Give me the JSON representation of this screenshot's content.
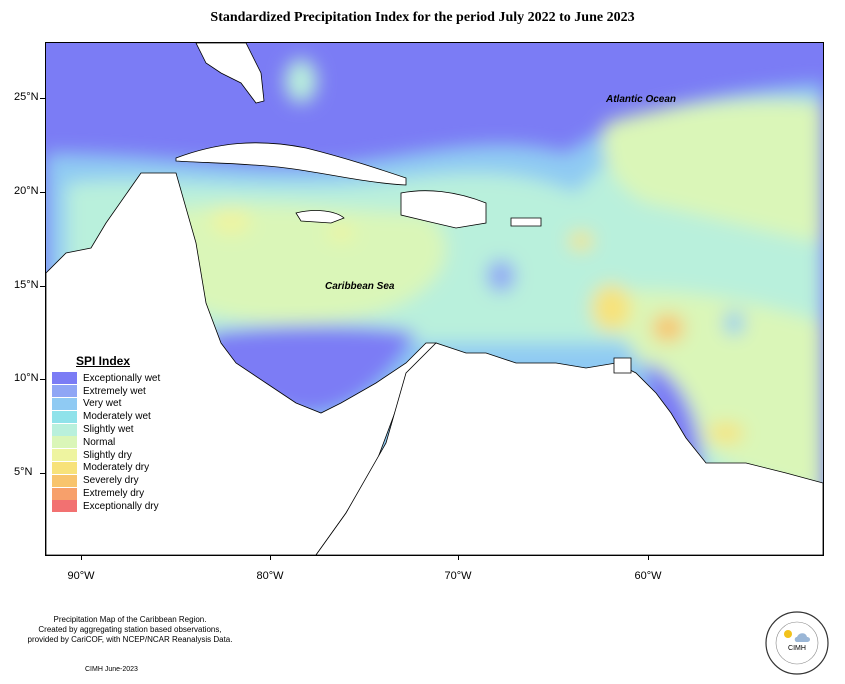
{
  "title": "Standardized Precipitation Index for the period July 2022 to June 2023",
  "ocean_labels": {
    "atlantic": "Atlantic Ocean",
    "caribbean": "Caribbean Sea"
  },
  "axes": {
    "lat_labels": [
      "25°N",
      "20°N",
      "15°N",
      "10°N",
      "5°N"
    ],
    "lon_labels": [
      "90°W",
      "80°W",
      "70°W",
      "60°W"
    ]
  },
  "legend": {
    "title": "SPI Index",
    "items": [
      {
        "label": "Exceptionally wet",
        "color": "#7b7cf5"
      },
      {
        "label": "Extremely wet",
        "color": "#8fa6f5"
      },
      {
        "label": "Very wet",
        "color": "#8fcaf3"
      },
      {
        "label": "Moderately wet",
        "color": "#8fe2ea"
      },
      {
        "label": "Slightly wet",
        "color": "#b9f0dc"
      },
      {
        "label": "Normal",
        "color": "#daf6b8"
      },
      {
        "label": "Slightly dry",
        "color": "#eef4a0"
      },
      {
        "label": "Moderately dry",
        "color": "#f7e27a"
      },
      {
        "label": "Severely dry",
        "color": "#f8c46d"
      },
      {
        "label": "Extremely dry",
        "color": "#f7a06b"
      },
      {
        "label": "Exceptionally dry",
        "color": "#f27171"
      }
    ]
  },
  "footer": {
    "line1": "Precipitation Map of the Caribbean Region.",
    "line2": "Created by aggregating station based observations,",
    "line3": "provided by CariCOF, with NCEP/NCAR Reanalysis Data.",
    "date": "CIMH June-2023"
  },
  "logo": {
    "text": "CIMH"
  }
}
